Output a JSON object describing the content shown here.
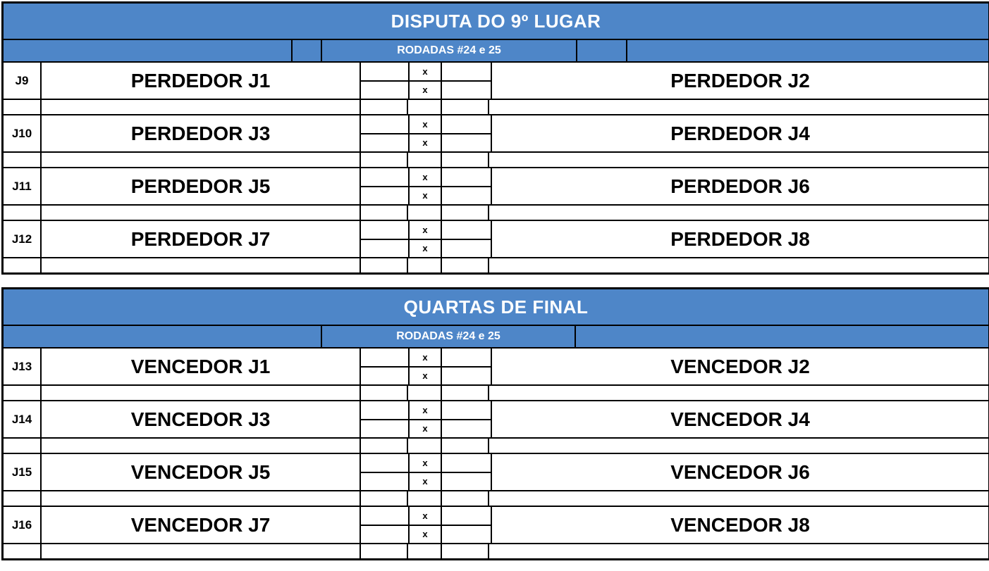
{
  "score_separator": "x",
  "colors": {
    "header_blue": "#4e86c8",
    "border": "#000000",
    "header_text": "#ffffff",
    "body_text": "#000000"
  },
  "sections": [
    {
      "title": "DISPUTA DO 9º LUGAR",
      "round_label": "RODADAS #24 e 25",
      "matches": [
        {
          "id": "J9",
          "home": "PERDEDOR J1",
          "away": "PERDEDOR J2"
        },
        {
          "id": "J10",
          "home": "PERDEDOR J3",
          "away": "PERDEDOR J4"
        },
        {
          "id": "J11",
          "home": "PERDEDOR J5",
          "away": "PERDEDOR J6"
        },
        {
          "id": "J12",
          "home": "PERDEDOR J7",
          "away": "PERDEDOR J8"
        }
      ]
    },
    {
      "title": "QUARTAS DE FINAL",
      "round_label": "RODADAS #24 e 25",
      "matches": [
        {
          "id": "J13",
          "home": "VENCEDOR J1",
          "away": "VENCEDOR J2"
        },
        {
          "id": "J14",
          "home": "VENCEDOR J3",
          "away": "VENCEDOR J4"
        },
        {
          "id": "J15",
          "home": "VENCEDOR J5",
          "away": "VENCEDOR J6"
        },
        {
          "id": "J16",
          "home": "VENCEDOR J7",
          "away": "VENCEDOR J8"
        }
      ]
    }
  ]
}
